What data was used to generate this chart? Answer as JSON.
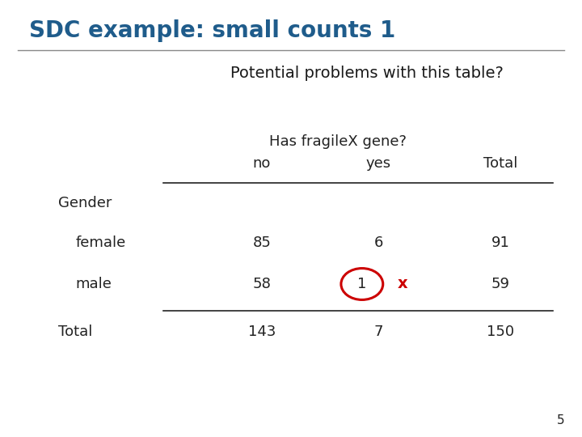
{
  "title": "SDC example: small counts 1",
  "title_color": "#1F5C8B",
  "banner_text": "Potential problems with this table?",
  "banner_bg": "#8BBCCC",
  "banner_text_color": "#1a1a1a",
  "col_header_line1": "Has fragileX gene?",
  "col_header_no": "no",
  "col_header_yes": "yes",
  "col_header_total": "Total",
  "row_group": "Gender",
  "row1_label": "female",
  "row2_label": "male",
  "row_total_label": "Total",
  "female_no": "85",
  "female_yes": "6",
  "female_total": "91",
  "male_no": "58",
  "male_yes": "1",
  "male_total": "59",
  "total_no": "143",
  "total_yes": "7",
  "total_total": "150",
  "circle_color": "#cc0000",
  "x_color": "#cc0000",
  "page_num": "5",
  "bg_color": "#ffffff",
  "text_color": "#222222"
}
